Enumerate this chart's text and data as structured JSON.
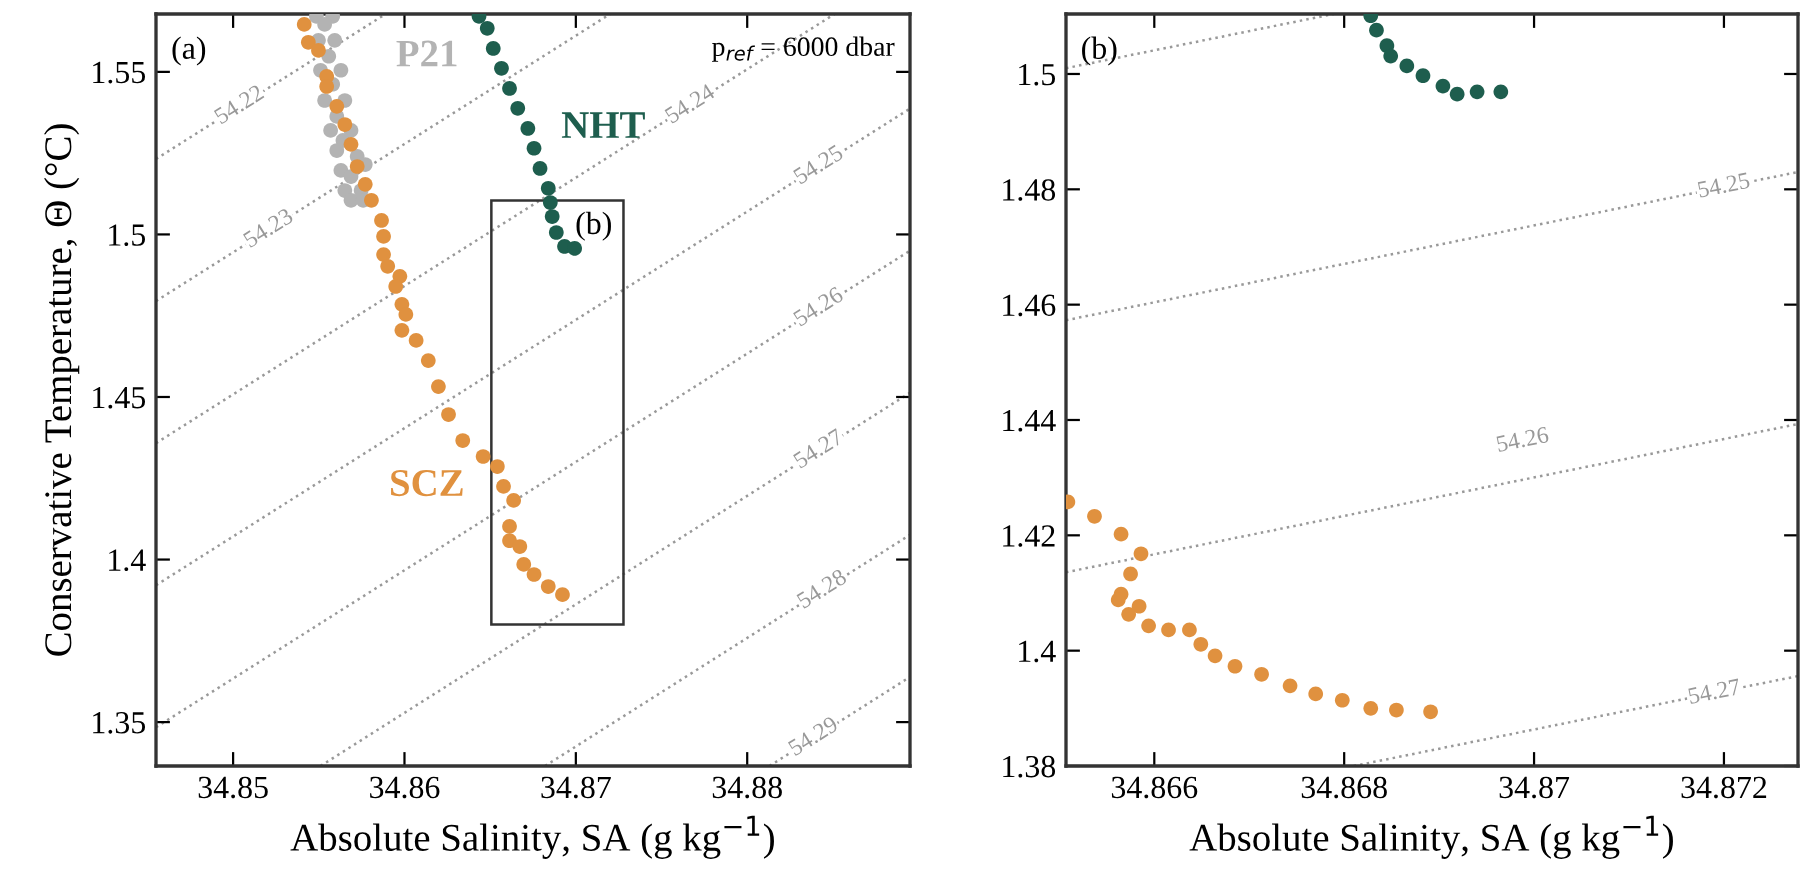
{
  "chart_data": [
    {
      "type": "scatter",
      "xlabel": "Absolute Salinity, SA (g kg$^{−1}$)",
      "ylabel": "Conservative Temperature, Θ (°C)",
      "xlim": [
        34.8455,
        34.8895
      ],
      "ylim": [
        1.3365,
        1.5678
      ],
      "xticks": [
        34.85,
        34.86,
        34.87,
        34.88
      ],
      "yticks": [
        1.35,
        1.4,
        1.45,
        1.5,
        1.55
      ],
      "grid": false,
      "legend": false,
      "marker": "circle",
      "annotations": [
        "(a)",
        "p$_{ref}$ = 6000 dbar",
        "(b)",
        {
          "text": "54.22",
          "x": 34.8504,
          "y": 1.5395
        },
        {
          "text": "54.23",
          "x": 34.8521,
          "y": 1.5015
        },
        {
          "text": "54.24",
          "x": 34.8767,
          "y": 1.5397
        },
        {
          "text": "54.25",
          "x": 34.8842,
          "y": 1.521
        },
        {
          "text": "54.26",
          "x": 34.8842,
          "y": 1.4773
        },
        {
          "text": "54.27",
          "x": 34.8842,
          "y": 1.4336
        },
        {
          "text": "54.28",
          "x": 34.8844,
          "y": 1.3905
        },
        {
          "text": "54.29",
          "x": 34.8839,
          "y": 1.3452
        }
      ],
      "series": [
        {
          "name": "SCZ",
          "color": "#e0913f",
          "x": [
            34.85415,
            34.85439,
            34.85498,
            34.85546,
            34.85546,
            34.85605,
            34.85652,
            34.85688,
            34.85724,
            34.85771,
            34.85807,
            34.85866,
            34.85878,
            34.85878,
            34.85902,
            34.85973,
            34.85949,
            34.85985,
            34.86008,
            34.85985,
            34.86068,
            34.86139,
            34.86198,
            34.86257,
            34.8634,
            34.86459,
            34.86542,
            34.86578,
            34.86637,
            34.86613,
            34.86613,
            34.86673,
            34.86696,
            34.86756,
            34.86839,
            34.86922
          ],
          "values": [
            1.5646,
            1.5591,
            1.5566,
            1.5486,
            1.5455,
            1.5394,
            1.5338,
            1.5277,
            1.5209,
            1.5154,
            1.5105,
            1.5043,
            1.4994,
            1.4938,
            1.4902,
            1.4871,
            1.484,
            1.4785,
            1.4754,
            1.4705,
            1.4674,
            1.4612,
            1.4532,
            1.4446,
            1.4366,
            1.4317,
            1.4286,
            1.4225,
            1.4182,
            1.4102,
            1.4058,
            1.404,
            1.3985,
            1.3954,
            1.3917,
            1.3892
          ]
        },
        {
          "name": "P21",
          "color": "#b3b3b3",
          "x": [
            34.85486,
            34.85581,
            34.85534,
            34.85498,
            34.85593,
            34.85558,
            34.8551,
            34.85629,
            34.85581,
            34.85534,
            34.85652,
            34.85605,
            34.85569,
            34.85688,
            34.85641,
            34.85605,
            34.85724,
            34.85629,
            34.85771,
            34.85688,
            34.85652,
            34.85747,
            34.85688,
            34.85759
          ],
          "values": [
            1.5671,
            1.5671,
            1.5646,
            1.5597,
            1.5597,
            1.5548,
            1.5505,
            1.5505,
            1.5462,
            1.5412,
            1.5412,
            1.5363,
            1.532,
            1.532,
            1.5289,
            1.5258,
            1.524,
            1.5197,
            1.5215,
            1.5178,
            1.5135,
            1.5135,
            1.5105,
            1.5105
          ]
        },
        {
          "name": "NHT",
          "color": "#1e5e4e",
          "x": [
            34.86435,
            34.86483,
            34.86518,
            34.86566,
            34.86613,
            34.86661,
            34.8672,
            34.86756,
            34.86791,
            34.86839,
            34.86851,
            34.86862,
            34.86886,
            34.86934,
            34.86993
          ],
          "values": [
            1.5671,
            1.5634,
            1.5572,
            1.5511,
            1.5449,
            1.5388,
            1.5326,
            1.5265,
            1.5203,
            1.5142,
            1.5098,
            1.5055,
            1.5006,
            1.4963,
            1.4957
          ]
        },
        {
          "type": "line",
          "color": "#999999",
          "line_style": "dotted",
          "marker": "none",
          "x": [
            34.8455,
            34.8589
          ],
          "values": [
            1.5232,
            1.5678
          ]
        },
        {
          "type": "line",
          "color": "#999999",
          "line_style": "dotted",
          "marker": "none",
          "x": [
            34.8455,
            34.872
          ],
          "values": [
            1.4795,
            1.5678
          ]
        },
        {
          "type": "line",
          "color": "#999999",
          "line_style": "dotted",
          "marker": "none",
          "x": [
            34.8455,
            34.8851
          ],
          "values": [
            1.4358,
            1.5678
          ]
        },
        {
          "type": "line",
          "color": "#999999",
          "line_style": "dotted",
          "marker": "none",
          "x": [
            34.8455,
            34.8895
          ],
          "values": [
            1.3921,
            1.5387
          ]
        },
        {
          "type": "line",
          "color": "#999999",
          "line_style": "dotted",
          "marker": "none",
          "x": [
            34.8455,
            34.8895
          ],
          "values": [
            1.3484,
            1.495
          ]
        },
        {
          "type": "line",
          "color": "#999999",
          "line_style": "dotted",
          "marker": "none",
          "x": [
            34.8551,
            34.8895
          ],
          "values": [
            1.3365,
            1.4513
          ]
        },
        {
          "type": "line",
          "color": "#999999",
          "line_style": "dotted",
          "marker": "none",
          "x": [
            34.8682,
            34.8895
          ],
          "values": [
            1.3365,
            1.4076
          ]
        },
        {
          "type": "line",
          "color": "#999999",
          "line_style": "dotted",
          "marker": "none",
          "x": [
            34.8813,
            34.8895
          ],
          "values": [
            1.3365,
            1.3639
          ]
        }
      ]
    },
    {
      "type": "scatter",
      "xlabel": "Absolute Salinity, SA (g kg$^{−1}$)",
      "xlim": [
        34.86507,
        34.87278
      ],
      "ylim": [
        1.38,
        1.5104
      ],
      "xticks": [
        34.866,
        34.868,
        34.87,
        34.872
      ],
      "yticks": [
        1.38,
        1.4,
        1.42,
        1.44,
        1.46,
        1.48,
        1.5
      ],
      "grid": false,
      "legend": false,
      "marker": "circle",
      "annotations": [
        "(b)",
        {
          "text": "54.25",
          "x": 34.872,
          "y": 1.4804
        },
        {
          "text": "54.26",
          "x": 34.86988,
          "y": 1.4363
        },
        {
          "text": "54.27",
          "x": 34.8719,
          "y": 1.3926
        }
      ],
      "series": [
        {
          "color": "#1e5e4e",
          "x": [
            34.86828,
            34.86834,
            34.86845,
            34.86849,
            34.86866,
            34.86883,
            34.86904,
            34.86919,
            34.8694,
            34.86965
          ],
          "values": [
            1.5101,
            1.5076,
            1.5049,
            1.5031,
            1.5014,
            1.4997,
            1.4979,
            1.4965,
            1.4969,
            1.4969
          ]
        },
        {
          "color": "#e0913f",
          "x": [
            34.86509,
            34.86537,
            34.86565,
            34.86586,
            34.86575,
            34.86565,
            34.86562,
            34.86584,
            34.86573,
            34.86594,
            34.86615,
            34.86637,
            34.86649,
            34.86664,
            34.86685,
            34.86713,
            34.86743,
            34.8677,
            34.86798,
            34.86828,
            34.86855,
            34.86891
          ],
          "values": [
            1.4258,
            1.4233,
            1.4202,
            1.4168,
            1.4133,
            1.4098,
            1.4088,
            1.4077,
            1.4063,
            1.4043,
            1.4036,
            1.4036,
            1.4011,
            1.3991,
            1.3973,
            1.3959,
            1.3939,
            1.3925,
            1.3914,
            1.39,
            1.3897,
            1.3894
          ]
        },
        {
          "type": "line",
          "color": "#999999",
          "line_style": "dotted",
          "marker": "none",
          "x": [
            34.86507,
            34.86789
          ],
          "values": [
            1.501,
            1.5104
          ]
        },
        {
          "type": "line",
          "color": "#999999",
          "line_style": "dotted",
          "marker": "none",
          "x": [
            34.86507,
            34.87278
          ],
          "values": [
            1.4573,
            1.483
          ]
        },
        {
          "type": "line",
          "color": "#999999",
          "line_style": "dotted",
          "marker": "none",
          "x": [
            34.86507,
            34.87278
          ],
          "values": [
            1.4136,
            1.4393
          ]
        },
        {
          "type": "line",
          "color": "#999999",
          "line_style": "dotted",
          "marker": "none",
          "x": [
            34.8681,
            34.87278
          ],
          "values": [
            1.38,
            1.3956
          ]
        }
      ]
    }
  ]
}
